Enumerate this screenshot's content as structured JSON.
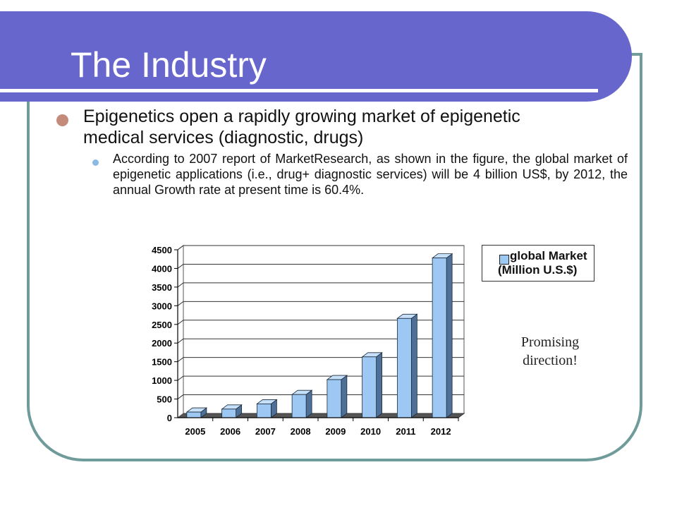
{
  "slide": {
    "title": "The Industry",
    "bullet1": "Epigenetics open a rapidly growing market of epigenetic medical services (diagnostic, drugs)",
    "bullet2": "According to 2007 report of MarketResearch, as shown in the figure, the global market of epigenetic applications (i.e., drug+ diagnostic services) will be 4 billion US$, by 2012, the annual Growth rate at present time is 60.4%.",
    "annotation": "Promising direction!",
    "colors": {
      "title_bar": "#6666cc",
      "frame": "#6f9b9a",
      "bullet1_dot": "#c48a7a",
      "bullet2_dot": "#8ab9e3"
    }
  },
  "chart_data": {
    "type": "bar",
    "categories": [
      "2005",
      "2006",
      "2007",
      "2008",
      "2009",
      "2010",
      "2011",
      "2012"
    ],
    "series": [
      {
        "name": "global Market (Million U.S.$)",
        "values": [
          150,
          230,
          370,
          620,
          1020,
          1630,
          2660,
          4280
        ]
      }
    ],
    "yticks": [
      "0",
      "500",
      "1000",
      "1500",
      "2000",
      "2500",
      "3000",
      "3500",
      "4000",
      "4500"
    ],
    "ylim": [
      0,
      4500
    ],
    "grid": true,
    "legend": "right",
    "bar_color": "#9ec8f4"
  }
}
